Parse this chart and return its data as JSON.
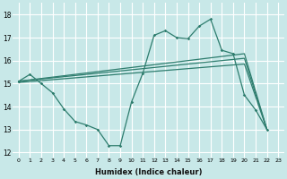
{
  "xlabel": "Humidex (Indice chaleur)",
  "xlim": [
    -0.5,
    23.5
  ],
  "ylim": [
    11.8,
    18.5
  ],
  "yticks": [
    12,
    13,
    14,
    15,
    16,
    17,
    18
  ],
  "xtick_labels": [
    "0",
    "1",
    "2",
    "3",
    "4",
    "5",
    "6",
    "7",
    "8",
    "9",
    "10",
    "11",
    "12",
    "13",
    "14",
    "15",
    "16",
    "17",
    "18",
    "19",
    "20",
    "21",
    "22",
    "23"
  ],
  "bg_color": "#c8e8e8",
  "grid_color": "#ffffff",
  "line_color": "#2e7d6e",
  "main_x": [
    0,
    1,
    2,
    3,
    4,
    5,
    6,
    7,
    8,
    9,
    10,
    11,
    12,
    13,
    14,
    15,
    16,
    17,
    18,
    19,
    20,
    21,
    22
  ],
  "main_y": [
    15.1,
    15.4,
    15.0,
    14.6,
    13.9,
    13.35,
    13.2,
    13.0,
    12.3,
    12.3,
    14.2,
    15.45,
    17.1,
    17.3,
    17.0,
    16.95,
    17.5,
    17.8,
    16.45,
    16.3,
    14.5,
    13.85,
    13.0
  ],
  "trend1_x": [
    0,
    20,
    22
  ],
  "trend1_y": [
    15.1,
    16.3,
    13.0
  ],
  "trend2_x": [
    0,
    20,
    22
  ],
  "trend2_y": [
    15.1,
    16.1,
    13.0
  ],
  "trend3_x": [
    0,
    20,
    22
  ],
  "trend3_y": [
    15.05,
    15.85,
    13.0
  ]
}
